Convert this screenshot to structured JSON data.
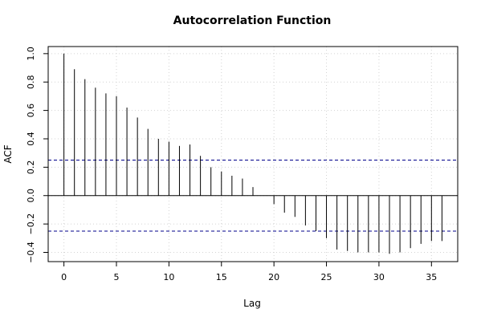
{
  "chart_data": {
    "type": "bar",
    "title": "Autocorrelation Function",
    "xlabel": "Lag",
    "ylabel": "ACF",
    "xlim": [
      -1.5,
      37.5
    ],
    "ylim": [
      -0.465,
      1.05
    ],
    "x_ticks": [
      0,
      5,
      10,
      15,
      20,
      25,
      30,
      35
    ],
    "y_ticks": [
      -0.4,
      -0.2,
      0.0,
      0.2,
      0.4,
      0.6,
      0.8,
      1.0
    ],
    "y_tick_labels": [
      "−0.4",
      "−0.2",
      "0.0",
      "0.2",
      "0.4",
      "0.6",
      "0.8",
      "1.0"
    ],
    "lags": [
      0,
      1,
      2,
      3,
      4,
      5,
      6,
      7,
      8,
      9,
      10,
      11,
      12,
      13,
      14,
      15,
      16,
      17,
      18,
      19,
      20,
      21,
      22,
      23,
      24,
      25,
      26,
      27,
      28,
      29,
      30,
      31,
      32,
      33,
      34,
      35,
      36
    ],
    "values": [
      1.0,
      0.89,
      0.82,
      0.76,
      0.72,
      0.7,
      0.62,
      0.55,
      0.47,
      0.4,
      0.38,
      0.35,
      0.36,
      0.28,
      0.2,
      0.17,
      0.14,
      0.12,
      0.06,
      0.0,
      -0.06,
      -0.12,
      -0.15,
      -0.21,
      -0.25,
      -0.3,
      -0.38,
      -0.39,
      -0.4,
      -0.4,
      -0.4,
      -0.41,
      -0.4,
      -0.37,
      -0.34,
      -0.32,
      -0.32
    ],
    "confidence_limits": [
      0.25,
      -0.25
    ],
    "colors": {
      "spikes": "#000000",
      "confidence": "#00008b",
      "zero_line": "#000000",
      "grid": "#d3d3d3"
    },
    "grid": true
  }
}
